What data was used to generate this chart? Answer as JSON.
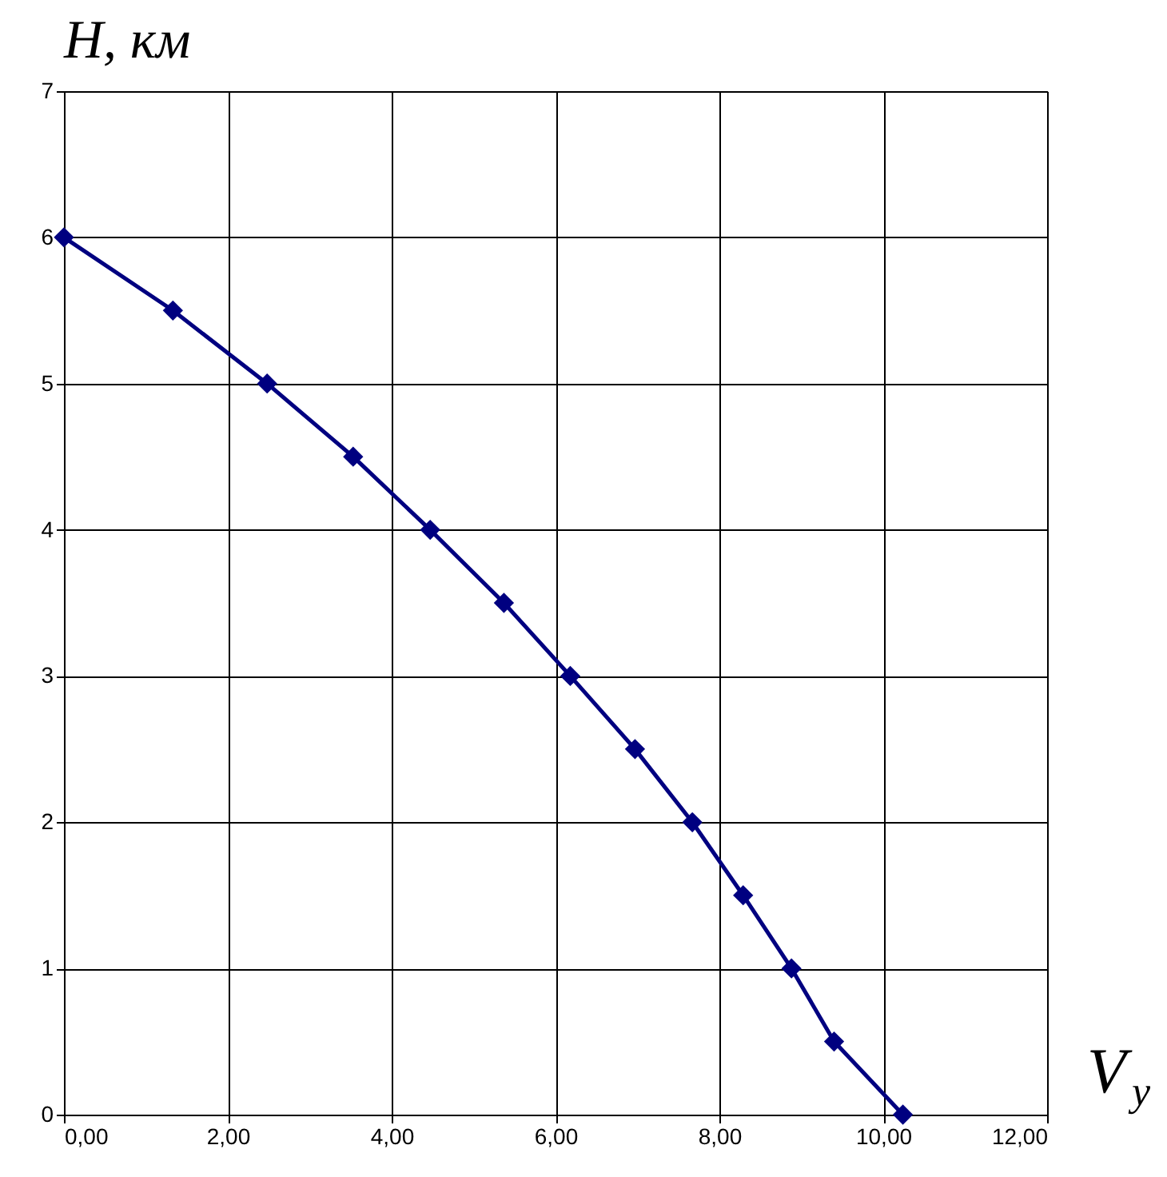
{
  "chart_data": {
    "type": "line",
    "xlabel": "V$_{y}$",
    "ylabel": "H, км",
    "x": [
      0,
      1.33,
      2.48,
      3.53,
      4.47,
      5.37,
      6.18,
      6.97,
      7.67,
      8.29,
      8.88,
      9.4,
      10.24
    ],
    "series": [
      {
        "color": "#000080",
        "values": [
          6,
          5.5,
          5,
          4.5,
          4,
          3.5,
          3,
          2.5,
          2,
          1.5,
          1,
          0.5,
          0
        ]
      }
    ],
    "xlim": [
      0,
      12
    ],
    "xticks": [
      {
        "value": 0,
        "label": "0,00"
      },
      {
        "value": 2,
        "label": "2,00"
      },
      {
        "value": 4,
        "label": "4,00"
      },
      {
        "value": 6,
        "label": "6,00"
      },
      {
        "value": 8,
        "label": "8,00"
      },
      {
        "value": 10,
        "label": "10,00"
      },
      {
        "value": 12,
        "label": "12,00"
      }
    ],
    "ylim": [
      0,
      7
    ],
    "yticks": [
      0,
      1,
      2,
      3,
      4,
      5,
      6,
      7
    ],
    "grid": true,
    "marker": "diamond",
    "line_style": "solid"
  }
}
